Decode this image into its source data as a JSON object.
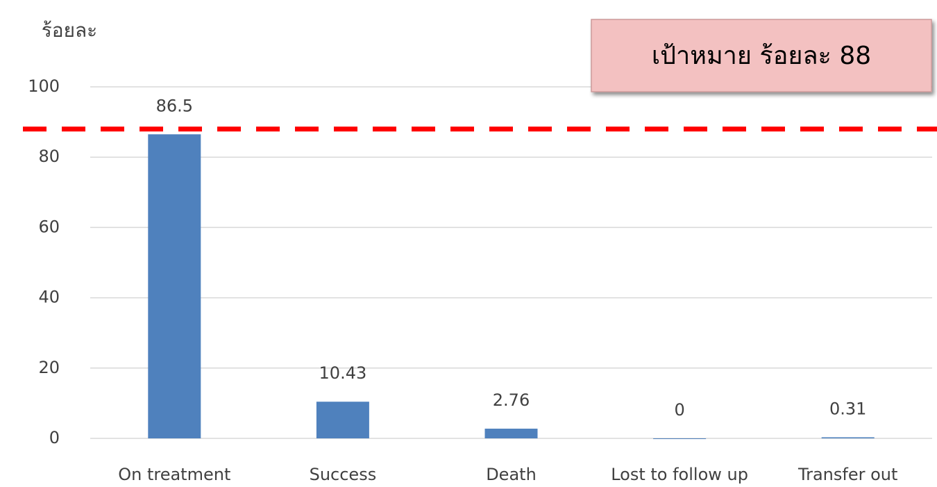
{
  "chart_data": {
    "type": "bar",
    "y_axis_label": "ร้อยละ",
    "annotation": "เป้าหมาย ร้อยละ 88",
    "target": 88,
    "target_color": "#ff0000",
    "categories": [
      "On treatment",
      "Success",
      "Death",
      "Lost to follow up",
      "Transfer out"
    ],
    "values": [
      86.5,
      10.43,
      2.76,
      0,
      0.31
    ],
    "color": "#4f81bd",
    "ylim": [
      0,
      100
    ],
    "yticks": [
      0,
      20,
      40,
      60,
      80,
      100
    ],
    "grid": true
  }
}
